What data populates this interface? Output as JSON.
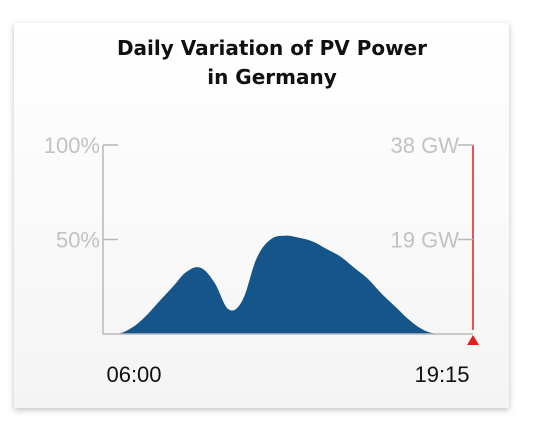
{
  "chart_data": {
    "type": "area",
    "title": "Daily Variation of PV Power",
    "subtitle": "in Germany",
    "xlabel": "",
    "ylabel": "",
    "x_tick_labels": [
      "06:00",
      "19:15"
    ],
    "y_left_ticks": [
      "100%",
      "50%"
    ],
    "y_right_ticks": [
      "38 GW",
      "19 GW"
    ],
    "ylim": [
      0,
      100
    ],
    "x": [
      "06:00",
      "06:30",
      "07:00",
      "07:30",
      "08:00",
      "08:30",
      "09:00",
      "09:30",
      "10:00",
      "10:30",
      "11:00",
      "11:30",
      "12:00",
      "12:30",
      "13:00",
      "13:30",
      "14:00",
      "14:30",
      "15:00",
      "15:30",
      "16:00",
      "16:30",
      "17:00",
      "17:30",
      "18:00",
      "18:30",
      "19:00",
      "19:15"
    ],
    "series": [
      {
        "values": [
          0,
          0,
          3,
          9,
          17,
          25,
          33,
          35,
          27,
          13,
          18,
          40,
          50,
          52,
          51,
          49,
          45,
          41,
          35,
          29,
          21,
          14,
          7,
          2,
          0,
          0,
          0,
          0
        ]
      }
    ],
    "colors": {
      "area": "#155589",
      "axis": "#b8b8b8",
      "current_time_marker": "#e11d1d"
    },
    "grid": false,
    "legend": "none"
  }
}
